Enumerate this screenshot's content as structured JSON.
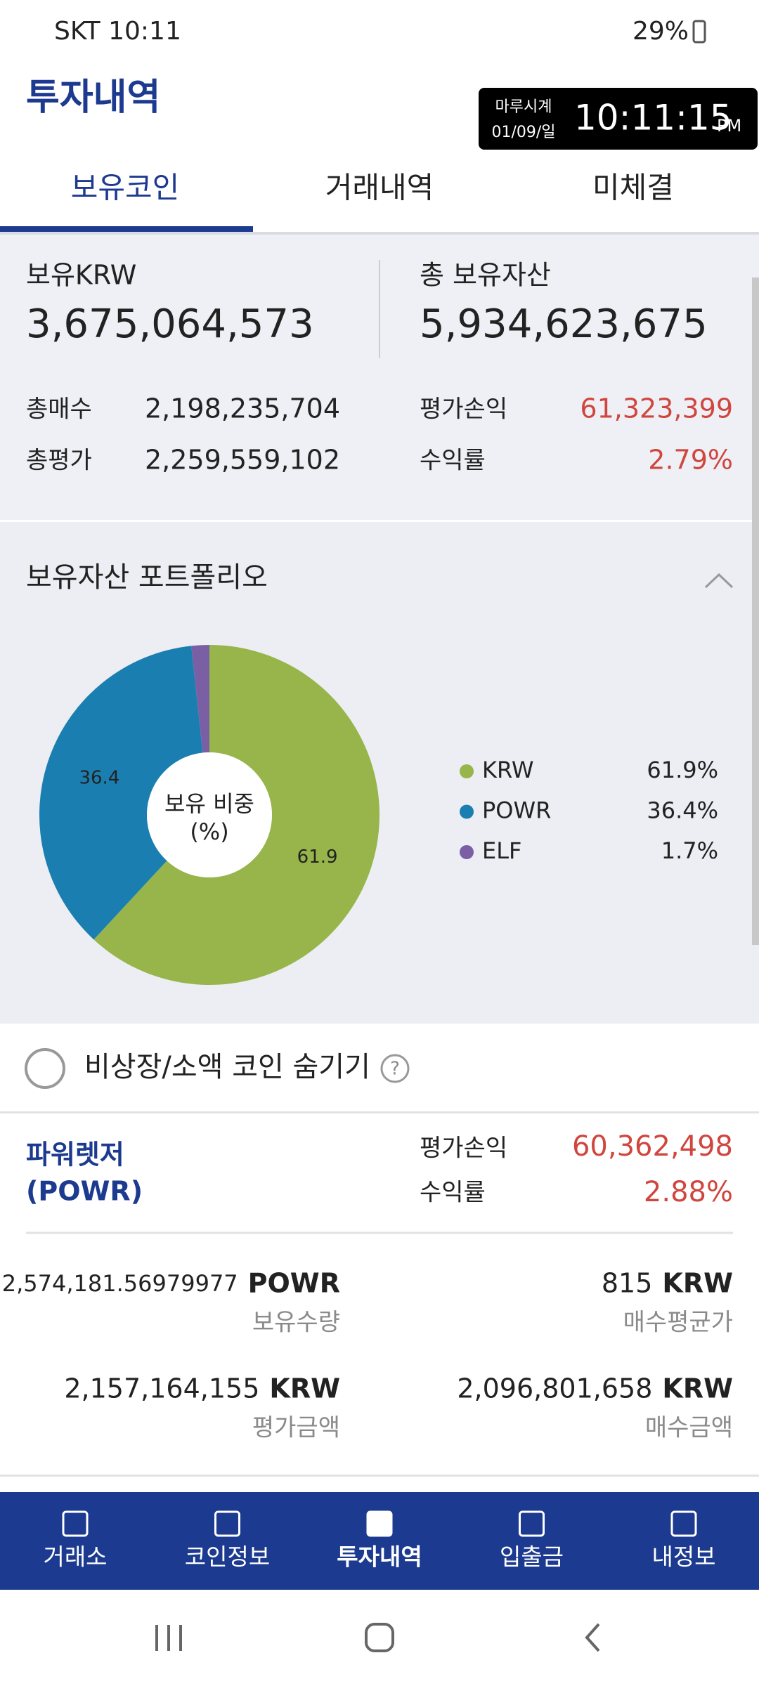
{
  "status_bar": {
    "carrier_time": "SKT 10:11",
    "battery": "29%"
  },
  "header": {
    "title": "투자내역"
  },
  "clock_widget": {
    "name": "마루시계",
    "date": "01/09/일",
    "time": "10:11:15",
    "ampm": "PM"
  },
  "tabs": [
    "보유코인",
    "거래내역",
    "미체결"
  ],
  "summary": {
    "krw_label": "보유KRW",
    "krw_value": "3,675,064,573",
    "total_label": "총 보유자산",
    "total_value": "5,934,623,675",
    "rows": [
      {
        "label": "총매수",
        "value": "2,198,235,704",
        "label2": "평가손익",
        "value2": "61,323,399"
      },
      {
        "label": "총평가",
        "value": "2,259,559,102",
        "label2": "수익률",
        "value2": "2.79%"
      }
    ]
  },
  "portfolio": {
    "title": "보유자산 포트폴리오"
  },
  "chart_data": {
    "type": "pie",
    "center_label": [
      "보유 비중",
      "(%)"
    ],
    "categories": [
      "KRW",
      "POWR",
      "ELF"
    ],
    "values": [
      61.9,
      36.4,
      1.7
    ],
    "value_labels": [
      "61.9%",
      "36.4%",
      "1.7%"
    ],
    "colors": [
      "#97b54b",
      "#1a7fb0",
      "#7a5fa5"
    ]
  },
  "hide_toggle": {
    "label": "비상장/소액 코인 숨기기",
    "help": "?"
  },
  "holding": {
    "name": "파워렛저",
    "symbol": "(POWR)",
    "pl_label": "평가손익",
    "pl_value": "60,362,498",
    "rate_label": "수익률",
    "rate_value": "2.88%",
    "fields": [
      {
        "amount": "2,574,181.56979977",
        "unit": "POWR",
        "label": "보유수량"
      },
      {
        "amount": "815",
        "unit": "KRW",
        "label": "매수평균가"
      },
      {
        "amount": "2,157,164,155",
        "unit": "KRW",
        "label": "평가금액"
      },
      {
        "amount": "2,096,801,658",
        "unit": "KRW",
        "label": "매수금액"
      }
    ]
  },
  "nav": [
    "거래소",
    "코인정보",
    "투자내역",
    "입출금",
    "내정보"
  ]
}
